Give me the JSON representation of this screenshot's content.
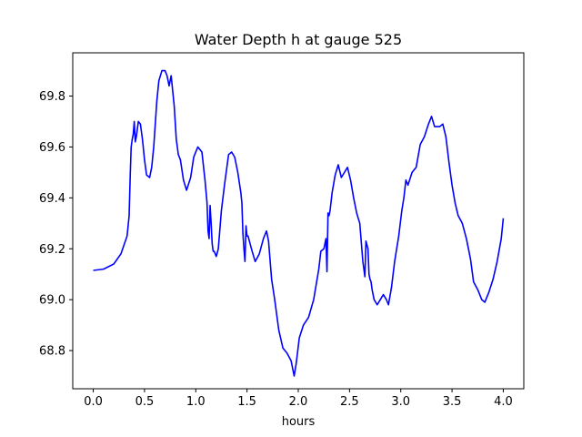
{
  "chart_data": {
    "type": "line",
    "title": "Water Depth h at gauge 525",
    "xlabel": "hours",
    "ylabel": "",
    "xlim": [
      -0.2,
      4.2
    ],
    "ylim": [
      68.65,
      69.97
    ],
    "grid": false,
    "x_ticks": [
      "0.0",
      "0.5",
      "1.0",
      "1.5",
      "2.0",
      "2.5",
      "3.0",
      "3.5",
      "4.0"
    ],
    "y_ticks": [
      "68.8",
      "69.0",
      "69.2",
      "69.4",
      "69.6",
      "69.8"
    ],
    "series": [
      {
        "color": "#0000ff",
        "x": [
          0.0,
          0.1,
          0.2,
          0.27,
          0.33,
          0.35,
          0.36,
          0.37,
          0.38,
          0.39,
          0.4,
          0.41,
          0.42,
          0.43,
          0.44,
          0.46,
          0.48,
          0.5,
          0.52,
          0.55,
          0.57,
          0.59,
          0.62,
          0.64,
          0.67,
          0.7,
          0.72,
          0.74,
          0.76,
          0.79,
          0.81,
          0.83,
          0.85,
          0.88,
          0.91,
          0.95,
          0.98,
          1.02,
          1.06,
          1.09,
          1.11,
          1.12,
          1.13,
          1.14,
          1.15,
          1.16,
          1.17,
          1.18,
          1.2,
          1.22,
          1.25,
          1.28,
          1.32,
          1.35,
          1.38,
          1.41,
          1.44,
          1.45,
          1.46,
          1.47,
          1.48,
          1.49,
          1.5,
          1.51,
          1.53,
          1.55,
          1.58,
          1.62,
          1.66,
          1.69,
          1.71,
          1.74,
          1.77,
          1.81,
          1.85,
          1.89,
          1.93,
          1.96,
          1.98,
          2.01,
          2.05,
          2.1,
          2.15,
          2.2,
          2.22,
          2.25,
          2.26,
          2.27,
          2.28,
          2.29,
          2.3,
          2.31,
          2.33,
          2.36,
          2.39,
          2.42,
          2.45,
          2.48,
          2.51,
          2.54,
          2.57,
          2.6,
          2.63,
          2.64,
          2.65,
          2.66,
          2.68,
          2.69,
          2.7,
          2.71,
          2.72,
          2.74,
          2.77,
          2.8,
          2.83,
          2.86,
          2.88,
          2.91,
          2.94,
          2.98,
          3.01,
          3.03,
          3.05,
          3.07,
          3.11,
          3.15,
          3.19,
          3.23,
          3.27,
          3.3,
          3.33,
          3.38,
          3.41,
          3.44,
          3.47,
          3.5,
          3.53,
          3.56,
          3.6,
          3.64,
          3.68,
          3.71,
          3.75,
          3.79,
          3.82,
          3.86,
          3.9,
          3.94,
          3.98,
          4.0
        ],
        "y": [
          69.115,
          69.12,
          69.14,
          69.18,
          69.25,
          69.33,
          69.48,
          69.6,
          69.63,
          69.65,
          69.7,
          69.62,
          69.64,
          69.67,
          69.7,
          69.69,
          69.63,
          69.55,
          69.49,
          69.48,
          69.52,
          69.6,
          69.78,
          69.86,
          69.9,
          69.9,
          69.88,
          69.84,
          69.88,
          69.76,
          69.63,
          69.57,
          69.55,
          69.47,
          69.43,
          69.48,
          69.56,
          69.6,
          69.58,
          69.47,
          69.38,
          69.27,
          69.24,
          69.37,
          69.3,
          69.22,
          69.19,
          69.19,
          69.17,
          69.2,
          69.35,
          69.45,
          69.57,
          69.58,
          69.56,
          69.5,
          69.42,
          69.38,
          69.26,
          69.2,
          69.15,
          69.29,
          69.25,
          69.25,
          69.22,
          69.19,
          69.15,
          69.18,
          69.24,
          69.27,
          69.23,
          69.08,
          69.0,
          68.88,
          68.81,
          68.79,
          68.76,
          68.7,
          68.75,
          68.85,
          68.9,
          68.93,
          69.0,
          69.12,
          69.19,
          69.2,
          69.22,
          69.24,
          69.11,
          69.34,
          69.33,
          69.35,
          69.42,
          69.49,
          69.53,
          69.48,
          69.5,
          69.52,
          69.47,
          69.4,
          69.34,
          69.3,
          69.15,
          69.12,
          69.09,
          69.23,
          69.2,
          69.1,
          69.08,
          69.07,
          69.04,
          69.0,
          68.98,
          69.0,
          69.02,
          69.0,
          68.98,
          69.05,
          69.15,
          69.25,
          69.35,
          69.4,
          69.47,
          69.45,
          69.5,
          69.52,
          69.61,
          69.64,
          69.69,
          69.72,
          69.68,
          69.68,
          69.69,
          69.64,
          69.54,
          69.45,
          69.38,
          69.33,
          69.3,
          69.24,
          69.16,
          69.07,
          69.04,
          69.0,
          68.99,
          69.03,
          69.08,
          69.15,
          69.24,
          69.32
        ]
      }
    ]
  }
}
